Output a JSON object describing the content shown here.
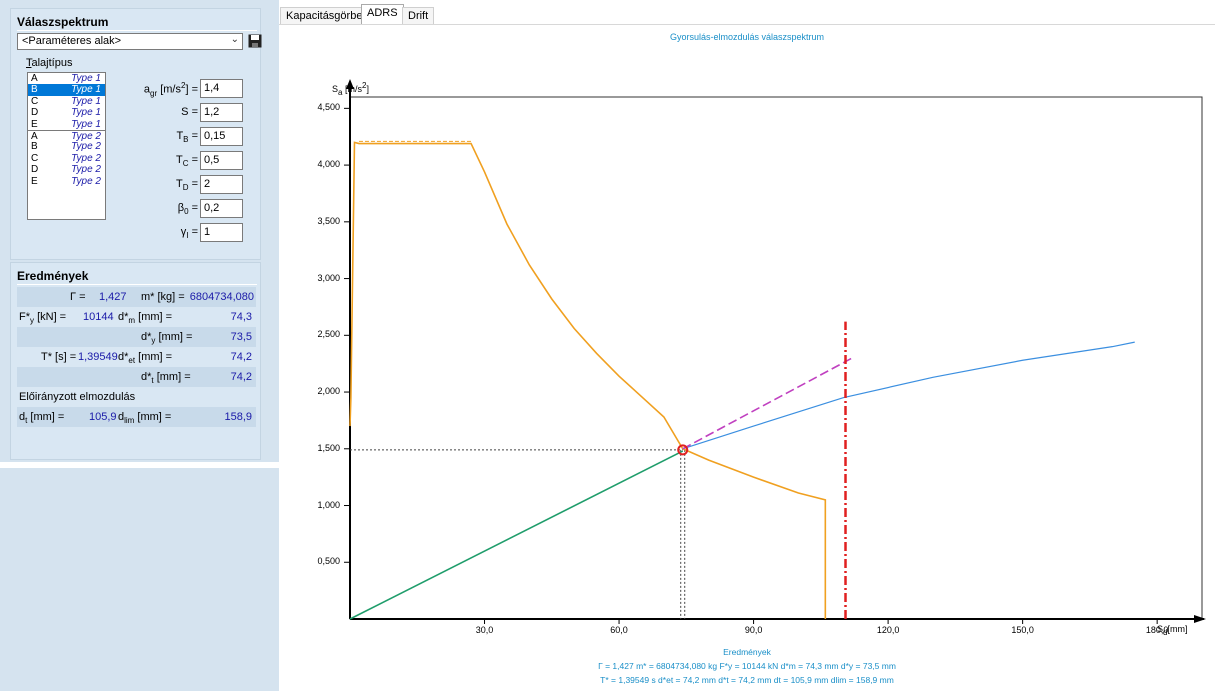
{
  "left_panel": {
    "title": "Válaszspektrum",
    "preset_select": "<Paraméteres alak>",
    "soil_label_first": "T",
    "soil_label_rest": "alajtípus",
    "soil_types": [
      {
        "cls": "A",
        "type": "Type 1"
      },
      {
        "cls": "B",
        "type": "Type 1"
      },
      {
        "cls": "C",
        "type": "Type 1"
      },
      {
        "cls": "D",
        "type": "Type 1"
      },
      {
        "cls": "E",
        "type": "Type 1"
      },
      {
        "cls": "A",
        "type": "Type 2"
      },
      {
        "cls": "B",
        "type": "Type 2"
      },
      {
        "cls": "C",
        "type": "Type 2"
      },
      {
        "cls": "D",
        "type": "Type 2"
      },
      {
        "cls": "E",
        "type": "Type 2"
      }
    ],
    "selected_soil_index": 1,
    "params": {
      "agr": "1,4",
      "S": "1,2",
      "TB": "0,15",
      "TC": "0,5",
      "TD": "2",
      "beta0": "0,2",
      "gammaI": "1"
    }
  },
  "results": {
    "title": "Eredmények",
    "gamma_label": "Γ =",
    "gamma": "1,427",
    "mstar_label": "m* [kg] =",
    "mstar": "6804734,080",
    "Fy_label": "[kN] =",
    "Fy": "10144",
    "dm_label": "[mm] =",
    "dm": "74,3",
    "dy_label": "[mm] =",
    "dy": "73,5",
    "Tstar_label": "T* [s] =",
    "Tstar": "1,39549",
    "det_label": "[mm] =",
    "det": "74,2",
    "dt_label": "[mm] =",
    "dt": "74,2",
    "target_label": "Előirányzott elmozdulás",
    "dt_target_label": "[mm] =",
    "dt_target": "105,9",
    "dlim_label": "[mm] =",
    "dlim": "158,9"
  },
  "tabs": [
    "Kapacitásgörbe",
    "ADRS",
    "Drift"
  ],
  "active_tab": "ADRS",
  "chart_data": {
    "type": "line",
    "title": "Gyorsulás-elmozdulás válaszspektrum",
    "ylabel": "S",
    "ylabel_sub": "a",
    "ylabel_unit": "[m/s",
    "ylabel_unit_end": "]",
    "xlabel": "S",
    "xlabel_sub": "d",
    "xlabel_unit": "[mm]",
    "xlim": [
      0,
      190
    ],
    "ylim": [
      0,
      4.6
    ],
    "x_ticks": [
      "30,0",
      "60,0",
      "90,0",
      "120,0",
      "150,0",
      "180,0"
    ],
    "x_tick_values": [
      30,
      60,
      90,
      120,
      150,
      180
    ],
    "y_ticks": [
      "0,500",
      "1,000",
      "1,500",
      "2,000",
      "2,500",
      "3,000",
      "3,500",
      "4,000",
      "4,500"
    ],
    "y_tick_values": [
      0.5,
      1.0,
      1.5,
      2.0,
      2.5,
      3.0,
      3.5,
      4.0,
      4.5
    ],
    "series": [
      {
        "color": "#f0a020",
        "x": [
          0,
          0.2,
          1,
          2,
          26,
          27,
          30,
          35,
          40,
          45,
          50,
          55,
          60,
          65,
          70,
          74.2,
          80,
          90,
          100,
          106,
          106,
          106
        ],
        "y": [
          1.7,
          1.95,
          4.2,
          4.19,
          4.19,
          4.19,
          3.94,
          3.48,
          3.12,
          2.82,
          2.56,
          2.34,
          2.14,
          1.96,
          1.78,
          1.5,
          1.4,
          1.25,
          1.11,
          1.05,
          0.5,
          0.0
        ]
      },
      {
        "color": "#1f9d6b",
        "x": [
          0,
          74.2
        ],
        "y": [
          0,
          1.48
        ]
      },
      {
        "color": "#3b8fe0",
        "x": [
          74.2,
          90,
          110,
          130,
          150,
          170,
          175
        ],
        "y": [
          1.5,
          1.7,
          1.95,
          2.13,
          2.28,
          2.4,
          2.44
        ]
      },
      {
        "color": "#c040c0",
        "x": [
          74.2,
          112
        ],
        "y": [
          1.5,
          2.3
        ]
      },
      {
        "color": "#e02020",
        "x": [
          110.5,
          110.5
        ],
        "y": [
          0,
          2.62
        ]
      }
    ],
    "point": {
      "x": 74.2,
      "y": 1.49
    },
    "footer_title": "Eredmények",
    "footer_line1": "Γ = 1,427     m* = 6804734,080 kg    F*y = 10144 kN     d*m = 74,3 mm     d*y = 73,5 mm",
    "footer_line2": "T* = 1,39549 s    d*et = 74,2 mm    d*t = 74,2 mm    dt = 105,9 mm    dlim = 158,9 mm"
  }
}
